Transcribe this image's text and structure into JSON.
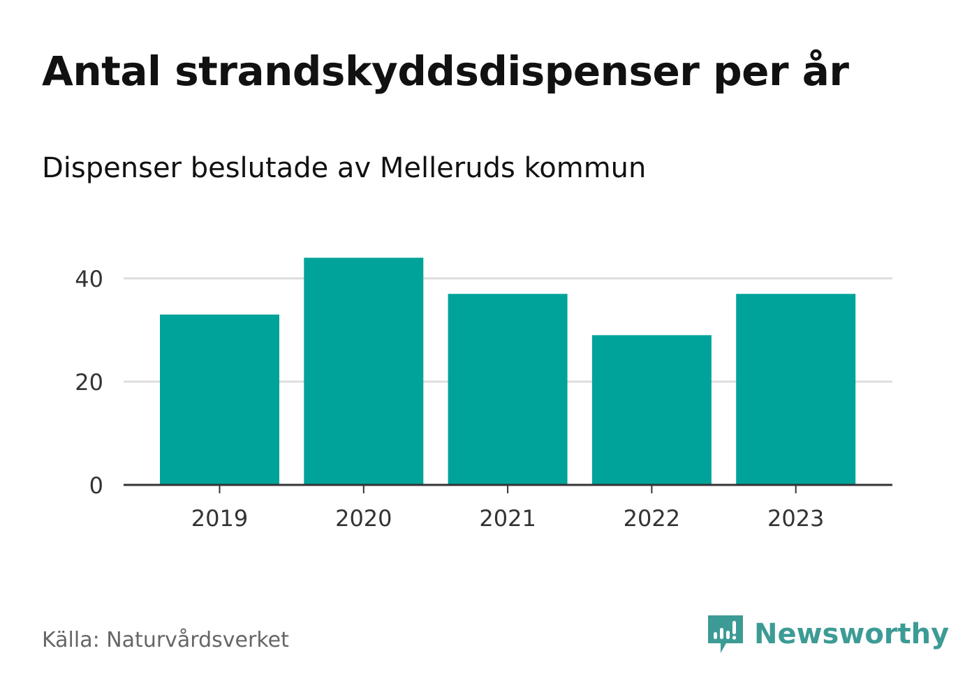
{
  "title": "Antal strandskyddsdispenser per år",
  "subtitle": "Dispenser beslutade av Melleruds kommun",
  "source": "Källa: Naturvårdsverket",
  "brand": {
    "name": "Newsworthy",
    "icon": "newsworthy-logo-icon",
    "color": "#3d9b95"
  },
  "colors": {
    "bar": "#00a39a",
    "grid": "#dddddd",
    "axis": "#333333",
    "tick_text": "#333333"
  },
  "chart_data": {
    "type": "bar",
    "categories": [
      "2019",
      "2020",
      "2021",
      "2022",
      "2023"
    ],
    "values": [
      33,
      44,
      37,
      29,
      37
    ],
    "yticks": [
      0,
      20,
      40
    ],
    "ylim": [
      0,
      45
    ],
    "xlabel": "",
    "ylabel": "",
    "grid": true,
    "legend": "none"
  }
}
